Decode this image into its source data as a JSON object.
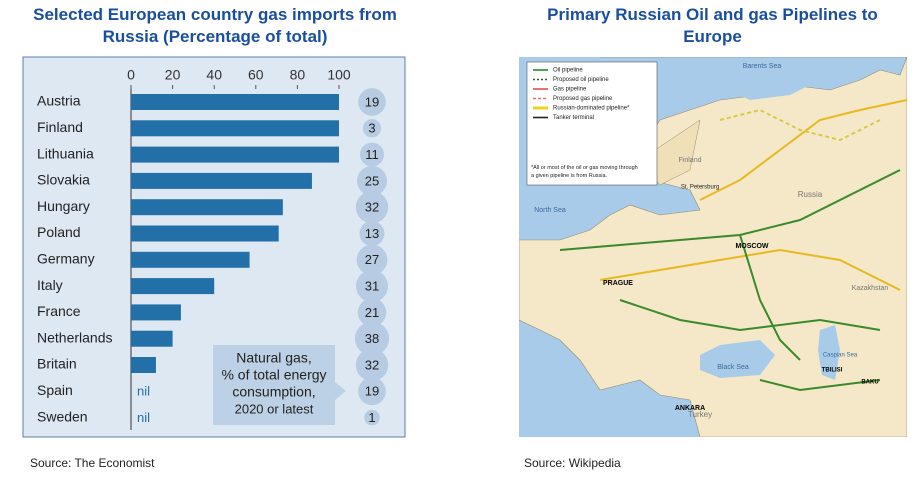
{
  "chart_data": {
    "type": "bar",
    "orientation": "horizontal",
    "title": "Selected European country gas imports from Russia (Percentage of total)",
    "categories": [
      "Austria",
      "Finland",
      "Lithuania",
      "Slovakia",
      "Hungary",
      "Poland",
      "Germany",
      "Italy",
      "France",
      "Netherlands",
      "Britain",
      "Spain",
      "Sweden"
    ],
    "series": [
      {
        "color": "#2370a8",
        "values": [
          100,
          100,
          100,
          87,
          73,
          71,
          57,
          40,
          24,
          20,
          12,
          0,
          0
        ],
        "value_labels": [
          null,
          null,
          null,
          null,
          null,
          null,
          null,
          null,
          null,
          null,
          null,
          "nil",
          "nil"
        ]
      }
    ],
    "bubbles": {
      "color": "#b7cce2",
      "values": [
        19,
        3,
        11,
        25,
        32,
        13,
        27,
        31,
        21,
        38,
        32,
        19,
        1
      ],
      "label_lines": [
        "Natural gas,",
        "% of total energy",
        "consumption,",
        "2020 or latest"
      ]
    },
    "xlim": [
      0,
      100
    ],
    "xticks": [
      0,
      20,
      40,
      60,
      80,
      100
    ],
    "source": "Source:  The Economist"
  },
  "map": {
    "title": "Primary Russian Oil and gas Pipelines to Europe",
    "source": "Source:  Wikipedia",
    "legend": [
      "Oil pipeline",
      "Proposed oil pipeline",
      "Gas pipeline",
      "Proposed gas pipeline",
      "Russian-dominated pipeline*",
      "Tanker terminal"
    ],
    "footnote": "*All or most of the oil or gas moving through a given pipeline is from Russia.",
    "places": [
      "Barents Sea",
      "Finland",
      "St. Petersburg",
      "North Sea",
      "MOSCOW",
      "Russia",
      "PRAGUE",
      "Kazakhstan",
      "Black Sea",
      "Caspian Sea",
      "Turkey",
      "ANKARA",
      "TBILISI",
      "BAKU"
    ]
  }
}
